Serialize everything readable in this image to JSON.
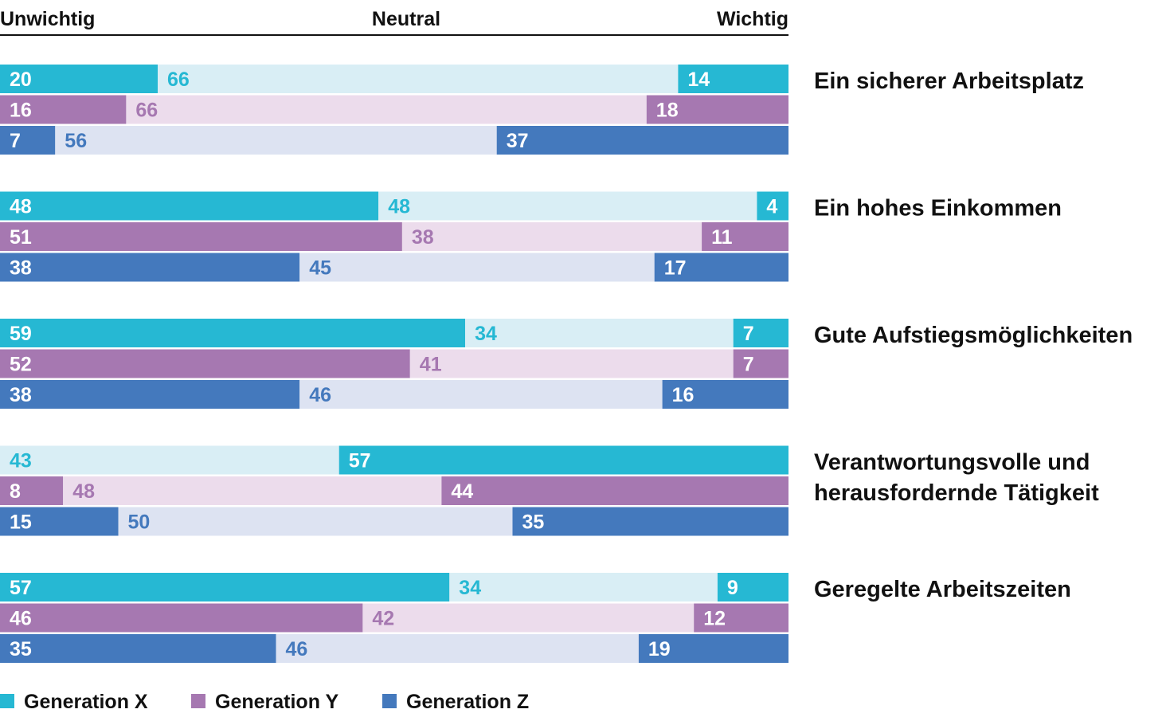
{
  "chart_data": {
    "type": "bar",
    "stacked": true,
    "orientation": "horizontal",
    "scale_labels": {
      "left": "Unwichtig",
      "center": "Neutral",
      "right": "Wichtig"
    },
    "segments": [
      "Unwichtig",
      "Neutral",
      "Wichtig"
    ],
    "xlim": [
      0,
      100
    ],
    "categories": [
      {
        "label_lines": [
          "Ein sicherer Arbeitsplatz"
        ]
      },
      {
        "label_lines": [
          "Ein hohes Einkommen"
        ]
      },
      {
        "label_lines": [
          "Gute Aufstiegsmöglichkeiten"
        ]
      },
      {
        "label_lines": [
          "Verantwortungsvolle und",
          "herausfordernde Tätigkeit"
        ]
      },
      {
        "label_lines": [
          "Geregelte Arbeitszeiten"
        ]
      }
    ],
    "series": [
      {
        "name": "Generation X",
        "values": [
          [
            20,
            66,
            14
          ],
          [
            48,
            48,
            4
          ],
          [
            59,
            34,
            7
          ],
          [
            0,
            43,
            57
          ],
          [
            57,
            34,
            9
          ]
        ]
      },
      {
        "name": "Generation Y",
        "values": [
          [
            16,
            66,
            18
          ],
          [
            51,
            38,
            11
          ],
          [
            52,
            41,
            7
          ],
          [
            8,
            48,
            44
          ],
          [
            46,
            42,
            12
          ]
        ]
      },
      {
        "name": "Generation Z",
        "values": [
          [
            7,
            56,
            37
          ],
          [
            38,
            45,
            17
          ],
          [
            38,
            46,
            16
          ],
          [
            15,
            50,
            35
          ],
          [
            35,
            46,
            19
          ]
        ]
      }
    ],
    "colors": {
      "Generation X": {
        "strong": "#26b8d3",
        "light": "#d9eef5",
        "label_on_light": "#26b8d3"
      },
      "Generation Y": {
        "strong": "#a678b1",
        "light": "#ecdcec",
        "label_on_light": "#a678b1"
      },
      "Generation Z": {
        "strong": "#4479bd",
        "light": "#dde3f2",
        "label_on_light": "#4479bd"
      }
    },
    "legend_position": "bottom-left",
    "grid": false
  }
}
